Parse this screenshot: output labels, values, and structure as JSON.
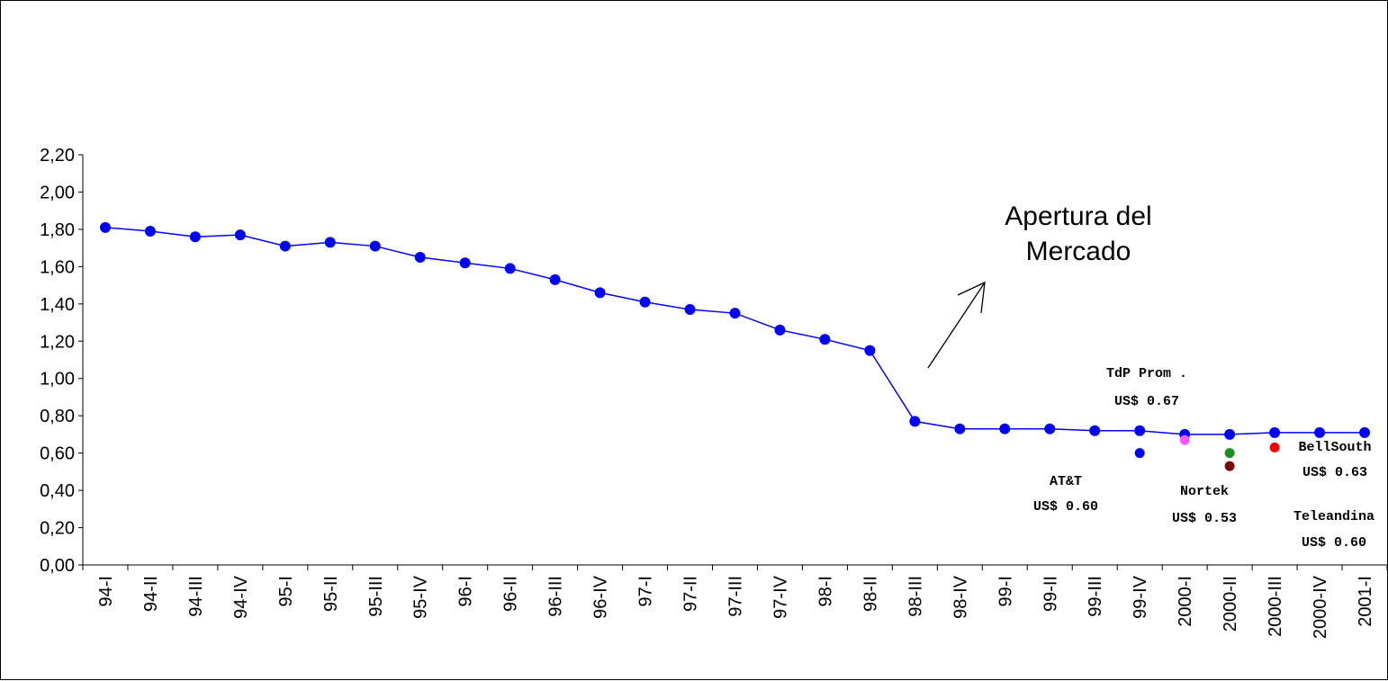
{
  "chart_data": {
    "type": "line",
    "categories": [
      "94-I",
      "94-II",
      "94-III",
      "94-IV",
      "95-I",
      "95-II",
      "95-III",
      "95-IV",
      "96-I",
      "96-II",
      "96-III",
      "96-IV",
      "97-I",
      "97-II",
      "97-III",
      "97-IV",
      "98-I",
      "98-II",
      "98-III",
      "98-IV",
      "99-I",
      "99-II",
      "99-III",
      "99-IV",
      "2000-I",
      "2000-II",
      "2000-III",
      "2000-IV",
      "2001-I"
    ],
    "y_tick_labels": [
      "0,00",
      "0,20",
      "0,40",
      "0,60",
      "0,80",
      "1,00",
      "1,20",
      "1,40",
      "1,60",
      "1,80",
      "2,00",
      "2,20"
    ],
    "ylim": [
      0,
      2.2
    ],
    "series": [
      {
        "color": "#0000ff",
        "values": [
          1.81,
          1.79,
          1.76,
          1.77,
          1.71,
          1.73,
          1.71,
          1.65,
          1.62,
          1.59,
          1.53,
          1.46,
          1.41,
          1.37,
          1.35,
          1.26,
          1.21,
          1.15,
          0.77,
          0.73,
          0.73,
          0.73,
          0.72,
          0.72,
          0.7,
          0.7,
          0.71,
          0.71,
          0.71
        ]
      }
    ],
    "competitor_points": [
      {
        "category": "99-IV",
        "value": 0.6,
        "color": "#0000ff"
      },
      {
        "category": "2000-I",
        "value": 0.67,
        "color": "#ff55ff"
      },
      {
        "category": "2000-II",
        "value": 0.6,
        "color": "#1f8f1f"
      },
      {
        "category": "2000-II",
        "value": 0.53,
        "color": "#7a0a0a"
      },
      {
        "category": "2000-III",
        "value": 0.63,
        "color": "#ff0000"
      }
    ],
    "annotations": [
      {
        "id": "att",
        "lines": [
          "AT&T",
          "US$ 0.60"
        ]
      },
      {
        "id": "tdp",
        "lines": [
          "TdP Prom .",
          "US$ 0.67"
        ]
      },
      {
        "id": "nortek",
        "lines": [
          "Nortek",
          "US$ 0.53"
        ]
      },
      {
        "id": "bellsouth",
        "lines": [
          "BellSouth",
          "US$ 0.63"
        ]
      },
      {
        "id": "teleandina",
        "lines": [
          "Teleandina",
          "US$ 0.60"
        ]
      }
    ],
    "callout": {
      "lines": [
        "Apertura del",
        "Mercado"
      ]
    },
    "grid": false,
    "legend": "none"
  }
}
